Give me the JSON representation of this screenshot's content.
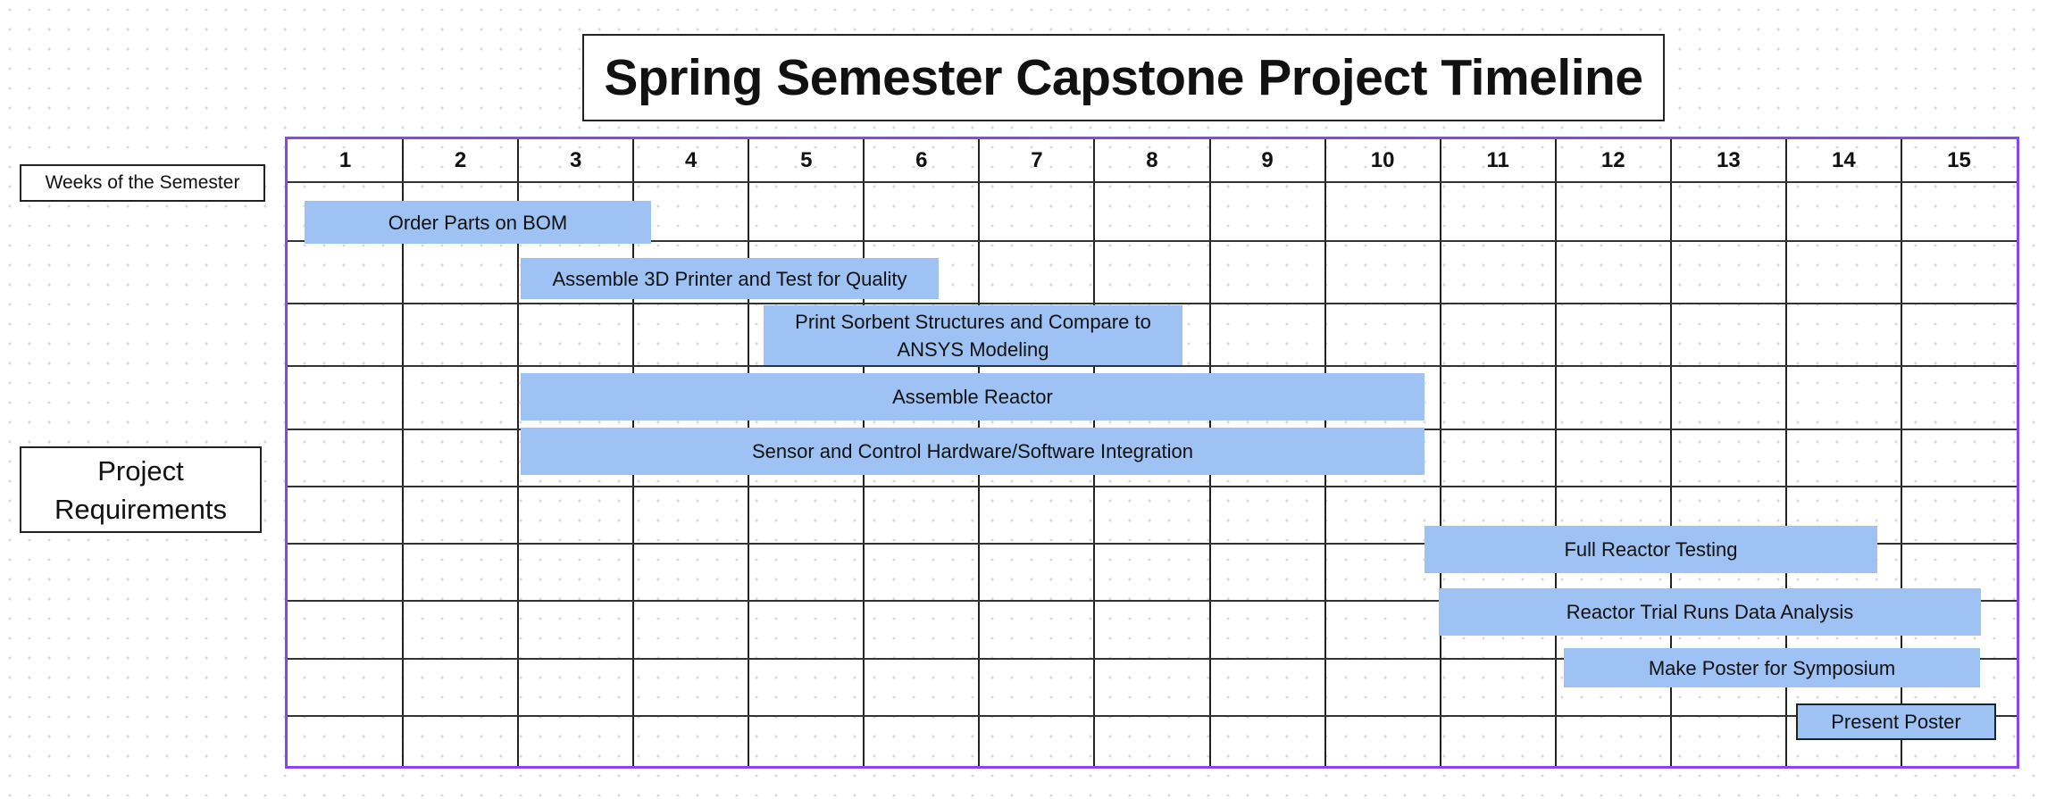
{
  "title": "Spring Semester Capstone Project Timeline",
  "weeks_label": "Weeks of the Semester",
  "requirements_label": "Project Requirements",
  "weeks": [
    "1",
    "2",
    "3",
    "4",
    "5",
    "6",
    "7",
    "8",
    "9",
    "10",
    "11",
    "12",
    "13",
    "14",
    "15"
  ],
  "colors": {
    "grid_border": "#8a45ef",
    "bar": "#9dc2f3"
  },
  "tasks": [
    {
      "label": "Order Parts on BOM"
    },
    {
      "label": "Assemble 3D Printer and Test for Quality"
    },
    {
      "label": "Print Sorbent Structures and Compare to ANSYS Modeling"
    },
    {
      "label": "Assemble Reactor"
    },
    {
      "label": "Sensor and Control Hardware/Software Integration"
    },
    {
      "label": "Full Reactor Testing"
    },
    {
      "label": "Reactor Trial Runs Data Analysis"
    },
    {
      "label": "Make Poster for Symposium"
    },
    {
      "label": "Present Poster"
    }
  ]
}
